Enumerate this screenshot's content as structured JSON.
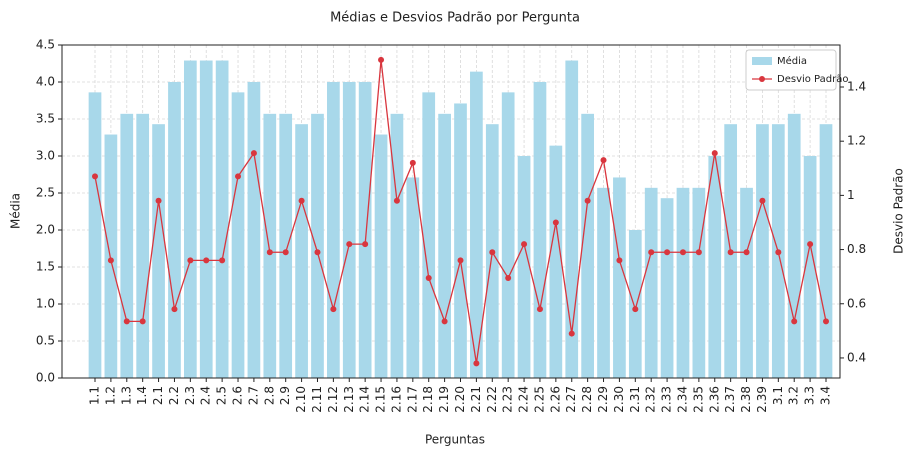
{
  "chart_data": {
    "type": "bar_line",
    "title": "Médias e Desvios Padrão por Pergunta",
    "x_label": "Perguntas",
    "y_label": "Média",
    "y2_label": "Desvio Padrão",
    "categories": [
      "1.1",
      "1.2",
      "1.3",
      "1.4",
      "2.1",
      "2.2",
      "2.3",
      "2.4",
      "2.5",
      "2.6",
      "2.7",
      "2.8",
      "2.9",
      "2.10",
      "2.11",
      "2.12",
      "2.13",
      "2.14",
      "2.15",
      "2.16",
      "2.17",
      "2.18",
      "2.19",
      "2.20",
      "2.21",
      "2.22",
      "2.23",
      "2.24",
      "2.25",
      "2.26",
      "2.27",
      "2.28",
      "2.29",
      "2.30",
      "2.31",
      "2.32",
      "2.33",
      "2.34",
      "2.35",
      "2.36",
      "2.37",
      "2.38",
      "2.39",
      "3.1",
      "3.2",
      "3.3",
      "3.4"
    ],
    "series": [
      {
        "name": "Média",
        "type": "bar",
        "color": "#a8d8ea",
        "values": [
          3.86,
          3.29,
          3.57,
          3.57,
          3.43,
          4.0,
          4.29,
          4.29,
          4.29,
          3.86,
          4.0,
          3.57,
          3.57,
          3.43,
          3.57,
          4.0,
          4.0,
          4.0,
          3.29,
          3.57,
          2.71,
          3.86,
          3.57,
          3.71,
          4.14,
          3.43,
          3.86,
          3.0,
          4.0,
          3.14,
          4.29,
          3.57,
          2.57,
          2.71,
          2.0,
          2.57,
          2.43,
          2.57,
          2.57,
          3.0,
          3.43,
          2.57,
          3.43,
          3.43,
          3.57,
          3.0,
          3.43
        ]
      },
      {
        "name": "Desvio Padrão",
        "type": "line",
        "axis": "y2",
        "color": "#d9363e",
        "values": [
          1.07,
          0.76,
          0.535,
          0.535,
          0.98,
          0.58,
          0.76,
          0.76,
          0.76,
          1.07,
          1.156,
          0.79,
          0.79,
          0.98,
          0.79,
          0.58,
          0.82,
          0.82,
          1.5,
          0.98,
          1.12,
          0.695,
          0.535,
          0.76,
          0.38,
          0.79,
          0.695,
          0.82,
          0.58,
          0.9,
          0.49,
          0.98,
          1.13,
          0.76,
          0.58,
          0.79,
          0.79,
          0.79,
          0.79,
          1.156,
          0.79,
          0.79,
          0.98,
          0.79,
          0.535,
          0.82,
          0.535
        ]
      }
    ],
    "ylim": [
      0,
      4.5
    ],
    "yticks": [
      {
        "value": 0,
        "label": "0.0"
      },
      0.5,
      {
        "value": 1,
        "label": "1.0"
      },
      1.5,
      {
        "value": 2,
        "label": "2.0"
      },
      2.5,
      {
        "value": 3,
        "label": "3.0"
      },
      3.5,
      {
        "value": 4,
        "label": "4.0"
      },
      4.5
    ],
    "y2lim": [
      0.326,
      1.555
    ],
    "y2ticks": [
      0.4,
      0.6,
      0.8,
      1.0,
      1.2,
      1.4
    ],
    "grid": true,
    "legend": "upper right"
  }
}
